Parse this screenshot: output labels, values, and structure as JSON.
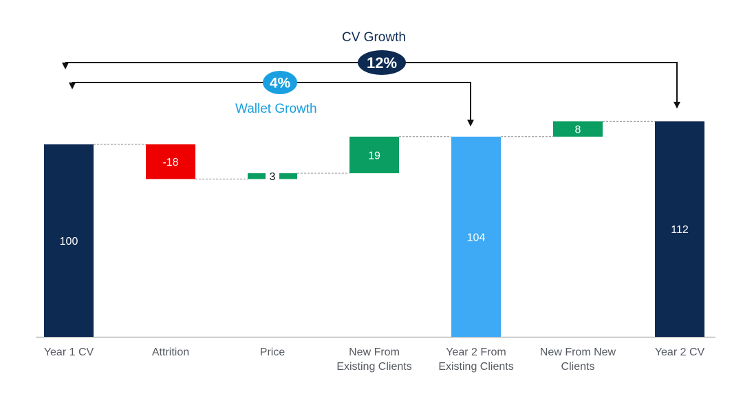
{
  "chart_data": {
    "type": "waterfall",
    "categories": [
      "Year 1 CV",
      "Attrition",
      "Price",
      "New From\nExisting Clients",
      "Year 2 From\nExisting Clients",
      "New From New\nClients",
      "Year 2 CV"
    ],
    "bars": [
      {
        "label": "Year 1 CV",
        "kind": "total",
        "value": 100,
        "color": "#0d2a52",
        "text": "100"
      },
      {
        "label": "Attrition",
        "kind": "delta",
        "value": -18,
        "color": "#ee0000",
        "text": "-18"
      },
      {
        "label": "Price",
        "kind": "delta",
        "value": 3,
        "color": "#0a9e62",
        "text": "3"
      },
      {
        "label": "New From Existing Clients",
        "kind": "delta",
        "value": 19,
        "color": "#0a9e62",
        "text": "19"
      },
      {
        "label": "Year 2 From Existing Clients",
        "kind": "total",
        "value": 104,
        "color": "#3ea9f5",
        "text": "104"
      },
      {
        "label": "New From New Clients",
        "kind": "delta",
        "value": 8,
        "color": "#0a9e62",
        "text": "8"
      },
      {
        "label": "Year 2 CV",
        "kind": "total",
        "value": 112,
        "color": "#0d2a52",
        "text": "112"
      }
    ],
    "annotations": {
      "cv_growth": {
        "title": "CV Growth",
        "value": "12%",
        "from": "Year 1 CV",
        "to": "Year 2 CV",
        "color": "#0d2a52"
      },
      "wallet_growth": {
        "title": "Wallet Growth",
        "value": "4%",
        "from": "Year 1 CV",
        "to": "Year 2 From Existing Clients",
        "color": "#1aa0e0"
      }
    },
    "ylim": [
      0,
      112
    ]
  }
}
